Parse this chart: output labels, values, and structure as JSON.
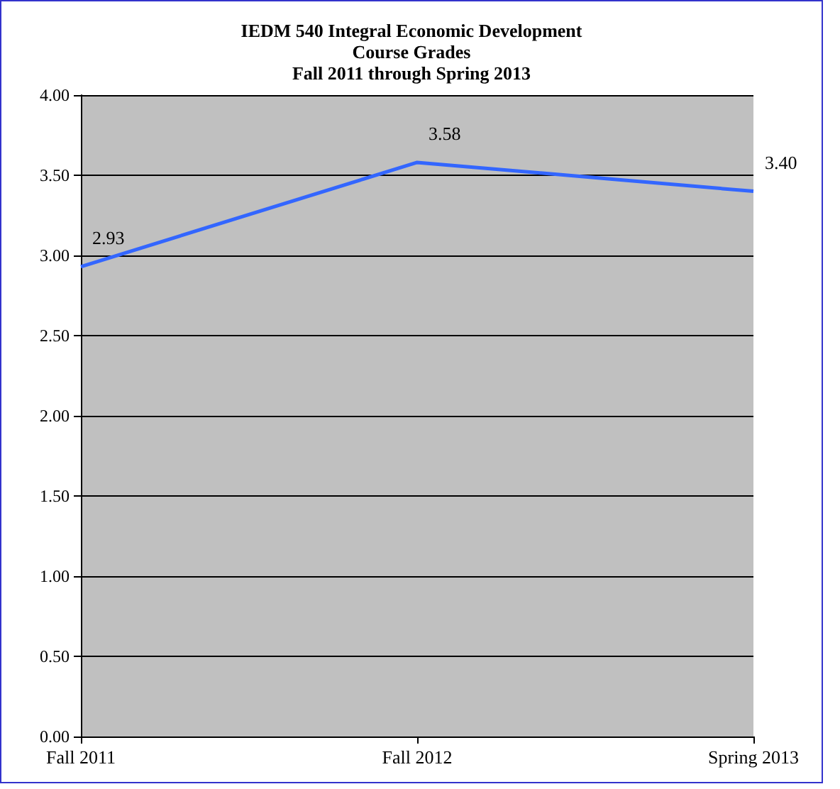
{
  "chart_data": {
    "type": "line",
    "title": "IEDM 540 Integral Economic Development\nCourse Grades\nFall 2011 through Spring 2013",
    "categories": [
      "Fall 2011",
      "Fall 2012",
      "Spring 2013"
    ],
    "series": [
      {
        "color": "#3366ff",
        "values": [
          2.93,
          3.58,
          3.4
        ]
      }
    ],
    "ylim": [
      0,
      4
    ],
    "yticks": [
      {
        "value": 0,
        "label": "0.00"
      },
      {
        "value": 0.5,
        "label": "0.50"
      },
      {
        "value": 1,
        "label": "1.00"
      },
      {
        "value": 1.5,
        "label": "1.50"
      },
      {
        "value": 2,
        "label": "2.00"
      },
      {
        "value": 2.5,
        "label": "2.50"
      },
      {
        "value": 3,
        "label": "3.00"
      },
      {
        "value": 3.5,
        "label": "3.50"
      },
      {
        "value": 4,
        "label": "4.00"
      }
    ],
    "value_labels": [
      "2.93",
      "3.58",
      "3.40"
    ],
    "grid": "y",
    "marker": "none",
    "line_style": "solid"
  }
}
